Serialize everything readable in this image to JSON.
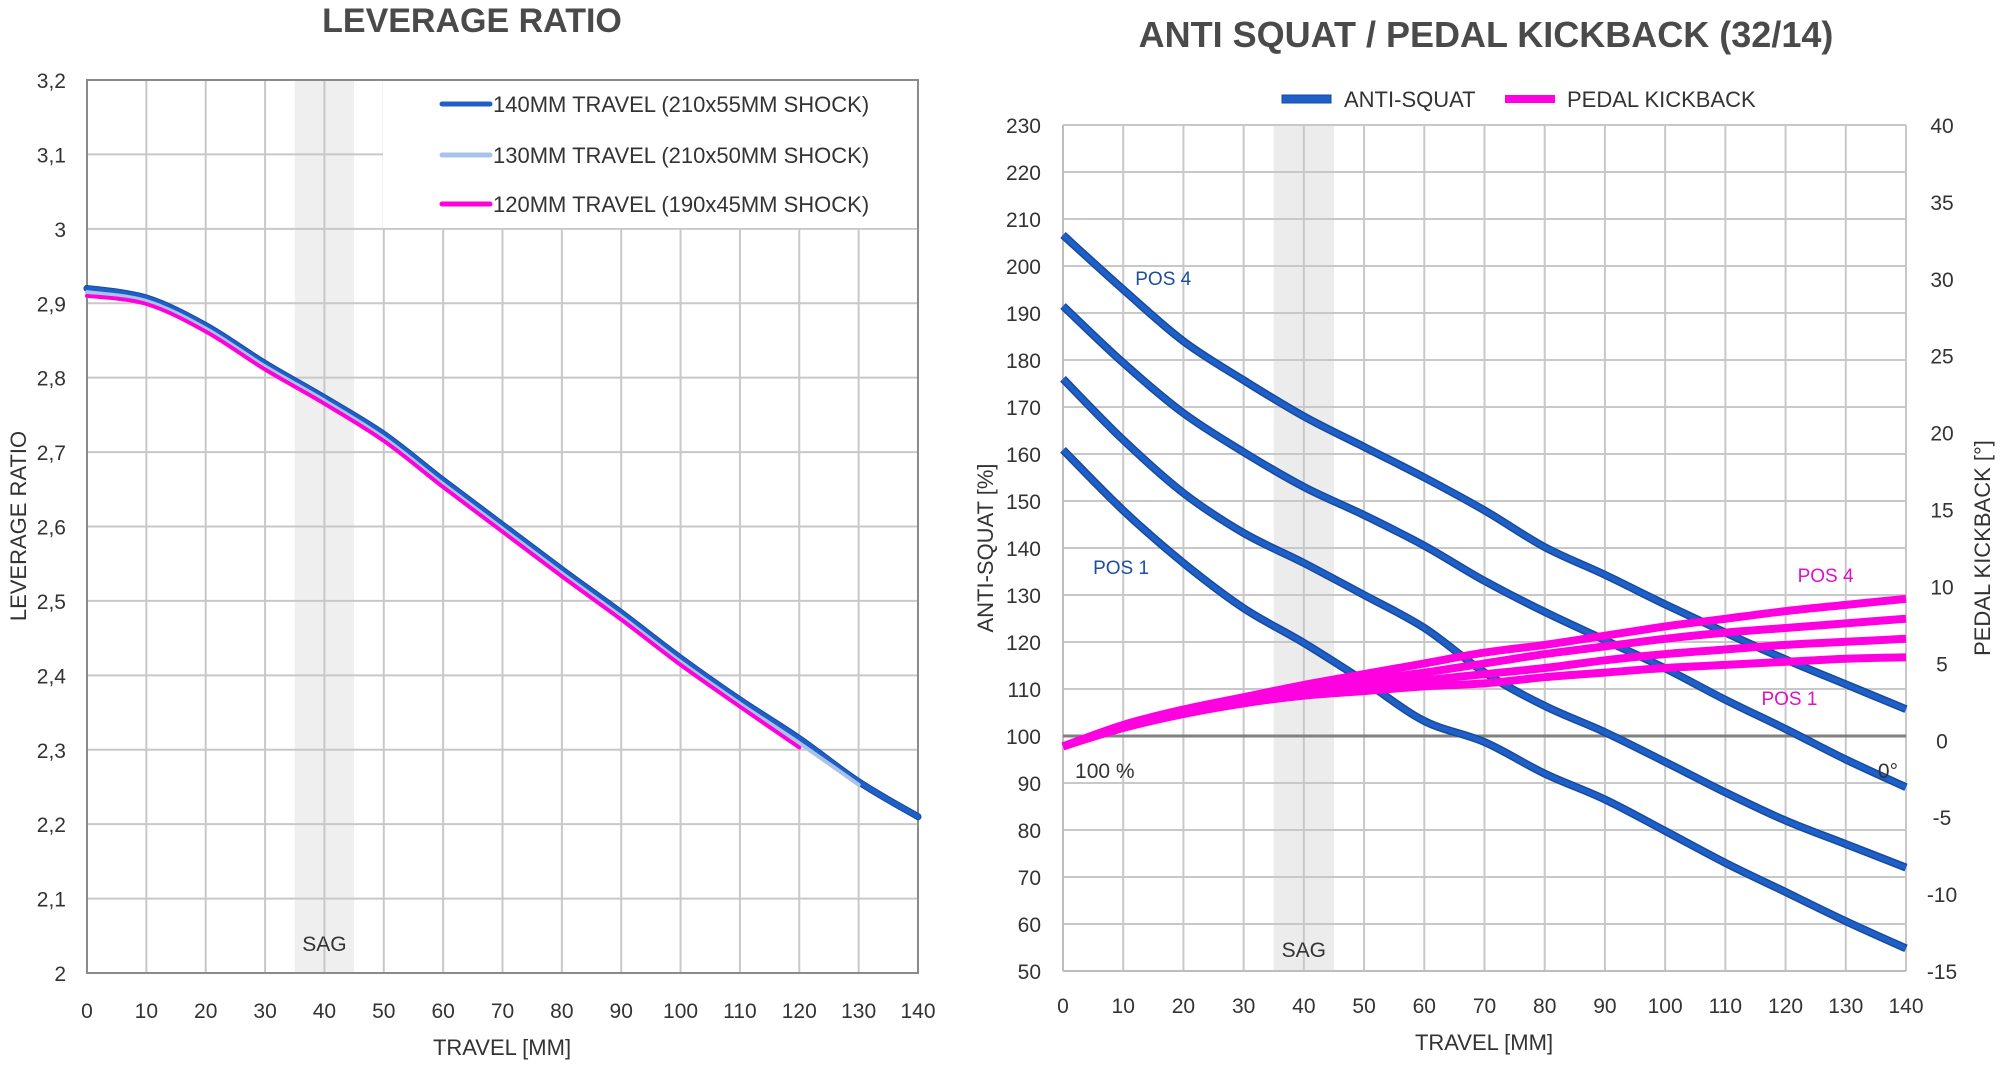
{
  "chart_data": [
    {
      "type": "line",
      "title": "LEVERAGE RATIO",
      "xlabel": "TRAVEL [MM]",
      "ylabel": "LEVERAGE RATIO",
      "xlim": [
        0,
        140
      ],
      "ylim": [
        2,
        3.2
      ],
      "xticks": [
        "0",
        "10",
        "20",
        "30",
        "40",
        "50",
        "60",
        "70",
        "80",
        "90",
        "100",
        "110",
        "120",
        "130",
        "140"
      ],
      "yticks": [
        "2",
        "2,1",
        "2,2",
        "2,3",
        "2,4",
        "2,5",
        "2,6",
        "2,7",
        "2,8",
        "2,9",
        "3",
        "3,1",
        "3,2"
      ],
      "grid": true,
      "legend_position": "top-right",
      "sag_band": {
        "label": "SAG",
        "from": 35,
        "to": 45
      },
      "series": [
        {
          "name": "140MM TRAVEL (210x55MM SHOCK)",
          "color": "#1f5fc8",
          "x": [
            0,
            10,
            20,
            30,
            40,
            50,
            60,
            70,
            80,
            90,
            100,
            110,
            120,
            130,
            140
          ],
          "y": [
            2.92,
            2.907,
            2.87,
            2.819,
            2.773,
            2.724,
            2.662,
            2.602,
            2.542,
            2.484,
            2.423,
            2.367,
            2.315,
            2.257,
            2.21
          ]
        },
        {
          "name": "130MM TRAVEL (210x50MM SHOCK)",
          "color": "#a9c3ea",
          "x": [
            0,
            10,
            20,
            30,
            40,
            50,
            60,
            70,
            80,
            90,
            100,
            110,
            120,
            130
          ],
          "y": [
            2.915,
            2.903,
            2.866,
            2.815,
            2.769,
            2.719,
            2.657,
            2.597,
            2.537,
            2.479,
            2.418,
            2.362,
            2.309,
            2.253
          ]
        },
        {
          "name": "120MM TRAVEL (190x45MM SHOCK)",
          "color": "#ff00d8",
          "x": [
            0,
            10,
            20,
            30,
            40,
            50,
            60,
            70,
            80,
            90,
            100,
            110,
            120
          ],
          "y": [
            2.91,
            2.899,
            2.862,
            2.811,
            2.765,
            2.715,
            2.653,
            2.593,
            2.533,
            2.475,
            2.414,
            2.358,
            2.303
          ]
        }
      ]
    },
    {
      "type": "line",
      "title": "ANTI SQUAT / PEDAL KICKBACK  (32/14)",
      "xlabel": "TRAVEL [MM]",
      "ylabel": "ANTI-SQUAT [%]",
      "y2label": "PEDAL KICKBACK [°]",
      "xlim": [
        0,
        140
      ],
      "ylim": [
        50,
        230
      ],
      "y2lim": [
        -15,
        40
      ],
      "xticks": [
        "0",
        "10",
        "20",
        "30",
        "40",
        "50",
        "60",
        "70",
        "80",
        "90",
        "100",
        "110",
        "120",
        "130",
        "140"
      ],
      "yticks": [
        "50",
        "60",
        "70",
        "80",
        "90",
        "100",
        "110",
        "120",
        "130",
        "140",
        "150",
        "160",
        "170",
        "180",
        "190",
        "200",
        "210",
        "220",
        "230"
      ],
      "y2ticks": [
        "-15",
        "-10",
        "-5",
        "0",
        "5",
        "10",
        "15",
        "20",
        "25",
        "30",
        "35",
        "40"
      ],
      "grid": true,
      "legend_position": "top-center",
      "legend": [
        {
          "name": "ANTI-SQUAT",
          "color": "#1f5fc8"
        },
        {
          "name": "PEDAL KICKBACK",
          "color": "#ff00e0"
        }
      ],
      "sag_band": {
        "label": "SAG",
        "from": 35,
        "to": 45
      },
      "reference_line": {
        "value": 100,
        "label_left": "100 %",
        "label_right": "0°"
      },
      "annotations": [
        {
          "text": "POS 4",
          "series": "anti-squat",
          "color": "#1a4fa0"
        },
        {
          "text": "POS 1",
          "series": "anti-squat",
          "color": "#1a4fa0"
        },
        {
          "text": "POS 4",
          "series": "pedal-kickback",
          "color": "#e010c8"
        },
        {
          "text": "POS 1",
          "series": "pedal-kickback",
          "color": "#e010c8"
        }
      ],
      "x": [
        0,
        10,
        20,
        30,
        40,
        50,
        60,
        70,
        80,
        90,
        100,
        110,
        120,
        130,
        140
      ],
      "series": [
        {
          "name": "ANTI-SQUAT POS 4",
          "axis": "left",
          "color": "#1f5fc8",
          "y": [
            206.6,
            195.0,
            184.0,
            175.7,
            168.0,
            161.5,
            155.0,
            148.0,
            140.2,
            134.3,
            128.0,
            122.0,
            116.3,
            111.0,
            105.7
          ]
        },
        {
          "name": "ANTI-SQUAT POS 3",
          "axis": "left",
          "color": "#1f5fc8",
          "y": [
            191.5,
            179.4,
            168.7,
            160.4,
            153.0,
            147.0,
            140.5,
            133.0,
            126.4,
            120.4,
            114.4,
            107.7,
            101.5,
            95.0,
            89.1
          ]
        },
        {
          "name": "ANTI-SQUAT POS 2",
          "axis": "left",
          "color": "#1f5fc8",
          "y": [
            176.0,
            163.0,
            151.7,
            143.2,
            136.8,
            130.0,
            123.0,
            113.5,
            106.4,
            100.8,
            94.5,
            88.0,
            82.0,
            77.0,
            72.0
          ]
        },
        {
          "name": "ANTI-SQUAT POS 1",
          "axis": "left",
          "color": "#1f5fc8",
          "y": [
            160.9,
            148.0,
            136.8,
            127.2,
            119.8,
            111.7,
            103.2,
            98.7,
            92.0,
            86.5,
            79.8,
            73.0,
            66.8,
            60.6,
            54.8
          ]
        },
        {
          "name": "PEDAL KICKBACK POS 4",
          "axis": "right",
          "color": "#ff00e0",
          "y": [
            -0.4,
            1.0,
            2.0,
            2.8,
            3.6,
            4.3,
            5.0,
            5.7,
            6.2,
            6.8,
            7.4,
            7.9,
            8.4,
            8.8,
            9.2
          ]
        },
        {
          "name": "PEDAL KICKBACK POS 3",
          "axis": "right",
          "color": "#ff00e0",
          "y": [
            -0.4,
            0.9,
            1.9,
            2.7,
            3.4,
            3.9,
            4.4,
            5.0,
            5.6,
            6.1,
            6.6,
            7.0,
            7.3,
            7.6,
            7.9
          ]
        },
        {
          "name": "PEDAL KICKBACK POS 2",
          "axis": "right",
          "color": "#ff00e0",
          "y": [
            -0.4,
            0.9,
            1.8,
            2.5,
            3.1,
            3.5,
            3.9,
            4.3,
            4.7,
            5.2,
            5.6,
            5.9,
            6.2,
            6.4,
            6.6
          ]
        },
        {
          "name": "PEDAL KICKBACK POS 1",
          "axis": "right",
          "color": "#ff00e0",
          "y": [
            -0.4,
            0.8,
            1.7,
            2.4,
            2.9,
            3.2,
            3.5,
            3.7,
            4.1,
            4.4,
            4.7,
            4.9,
            5.1,
            5.3,
            5.4
          ]
        }
      ]
    }
  ]
}
